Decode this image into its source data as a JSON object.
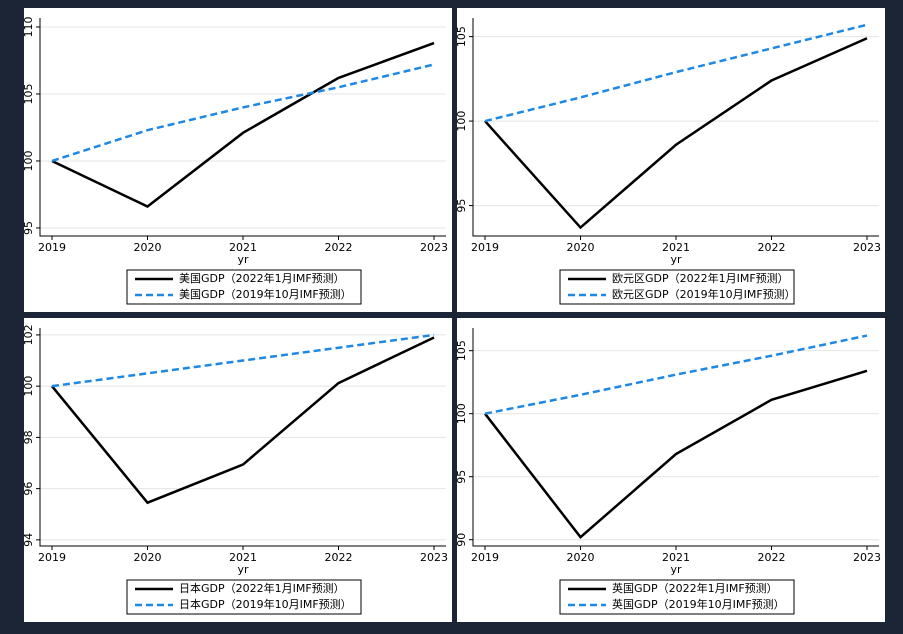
{
  "chart_data": [
    {
      "type": "line",
      "xlabel": "yr",
      "categories": [
        "2019",
        "2020",
        "2021",
        "2022",
        "2023"
      ],
      "ylim": [
        94.4,
        110.67
      ],
      "yticks": [
        95,
        100,
        105,
        110
      ],
      "grid": true,
      "series": [
        {
          "name": "美国GDP（2022年1月IMF预测）",
          "color": "#000000",
          "linestyle": "solid",
          "values": [
            100,
            96.6,
            102.1,
            106.2,
            108.8
          ]
        },
        {
          "name": "美国GDP（2019年10月IMF预测）",
          "color": "#1e88e5",
          "linestyle": "dashed",
          "values": [
            100,
            102.3,
            104.0,
            105.5,
            107.2
          ]
        }
      ]
    },
    {
      "type": "line",
      "xlabel": "yr",
      "categories": [
        "2019",
        "2020",
        "2021",
        "2022",
        "2023"
      ],
      "ylim": [
        93.2,
        106.1
      ],
      "yticks": [
        95,
        100,
        105
      ],
      "grid": true,
      "series": [
        {
          "name": "欧元区GDP（2022年1月IMF预测）",
          "color": "#000000",
          "linestyle": "solid",
          "values": [
            100,
            93.7,
            98.6,
            102.4,
            104.9
          ]
        },
        {
          "name": "欧元区GDP（2019年10月IMF预测）",
          "color": "#1e88e5",
          "linestyle": "dashed",
          "values": [
            100,
            101.4,
            102.9,
            104.3,
            105.7
          ]
        }
      ]
    },
    {
      "type": "line",
      "xlabel": "yr",
      "categories": [
        "2019",
        "2020",
        "2021",
        "2022",
        "2023"
      ],
      "ylim": [
        93.76,
        102.27
      ],
      "yticks": [
        94,
        96,
        98,
        100,
        102
      ],
      "grid": true,
      "series": [
        {
          "name": "日本GDP（2022年1月IMF预测）",
          "color": "#000000",
          "linestyle": "solid",
          "values": [
            100,
            95.45,
            96.94,
            100.12,
            101.9
          ]
        },
        {
          "name": "日本GDP（2019年10月IMF预测）",
          "color": "#1e88e5",
          "linestyle": "dashed",
          "values": [
            100,
            100.5,
            101.0,
            101.5,
            102.0
          ]
        }
      ]
    },
    {
      "type": "line",
      "xlabel": "yr",
      "categories": [
        "2019",
        "2020",
        "2021",
        "2022",
        "2023"
      ],
      "ylim": [
        89.5,
        106.8
      ],
      "yticks": [
        90,
        95,
        100,
        105
      ],
      "grid": true,
      "series": [
        {
          "name": "英国GDP（2022年1月IMF预测）",
          "color": "#000000",
          "linestyle": "solid",
          "values": [
            100,
            90.2,
            96.8,
            101.1,
            103.4
          ]
        },
        {
          "name": "英国GDP（2019年10月IMF预测）",
          "color": "#1e88e5",
          "linestyle": "dashed",
          "values": [
            100,
            101.5,
            103.1,
            104.6,
            106.2
          ]
        }
      ]
    }
  ]
}
